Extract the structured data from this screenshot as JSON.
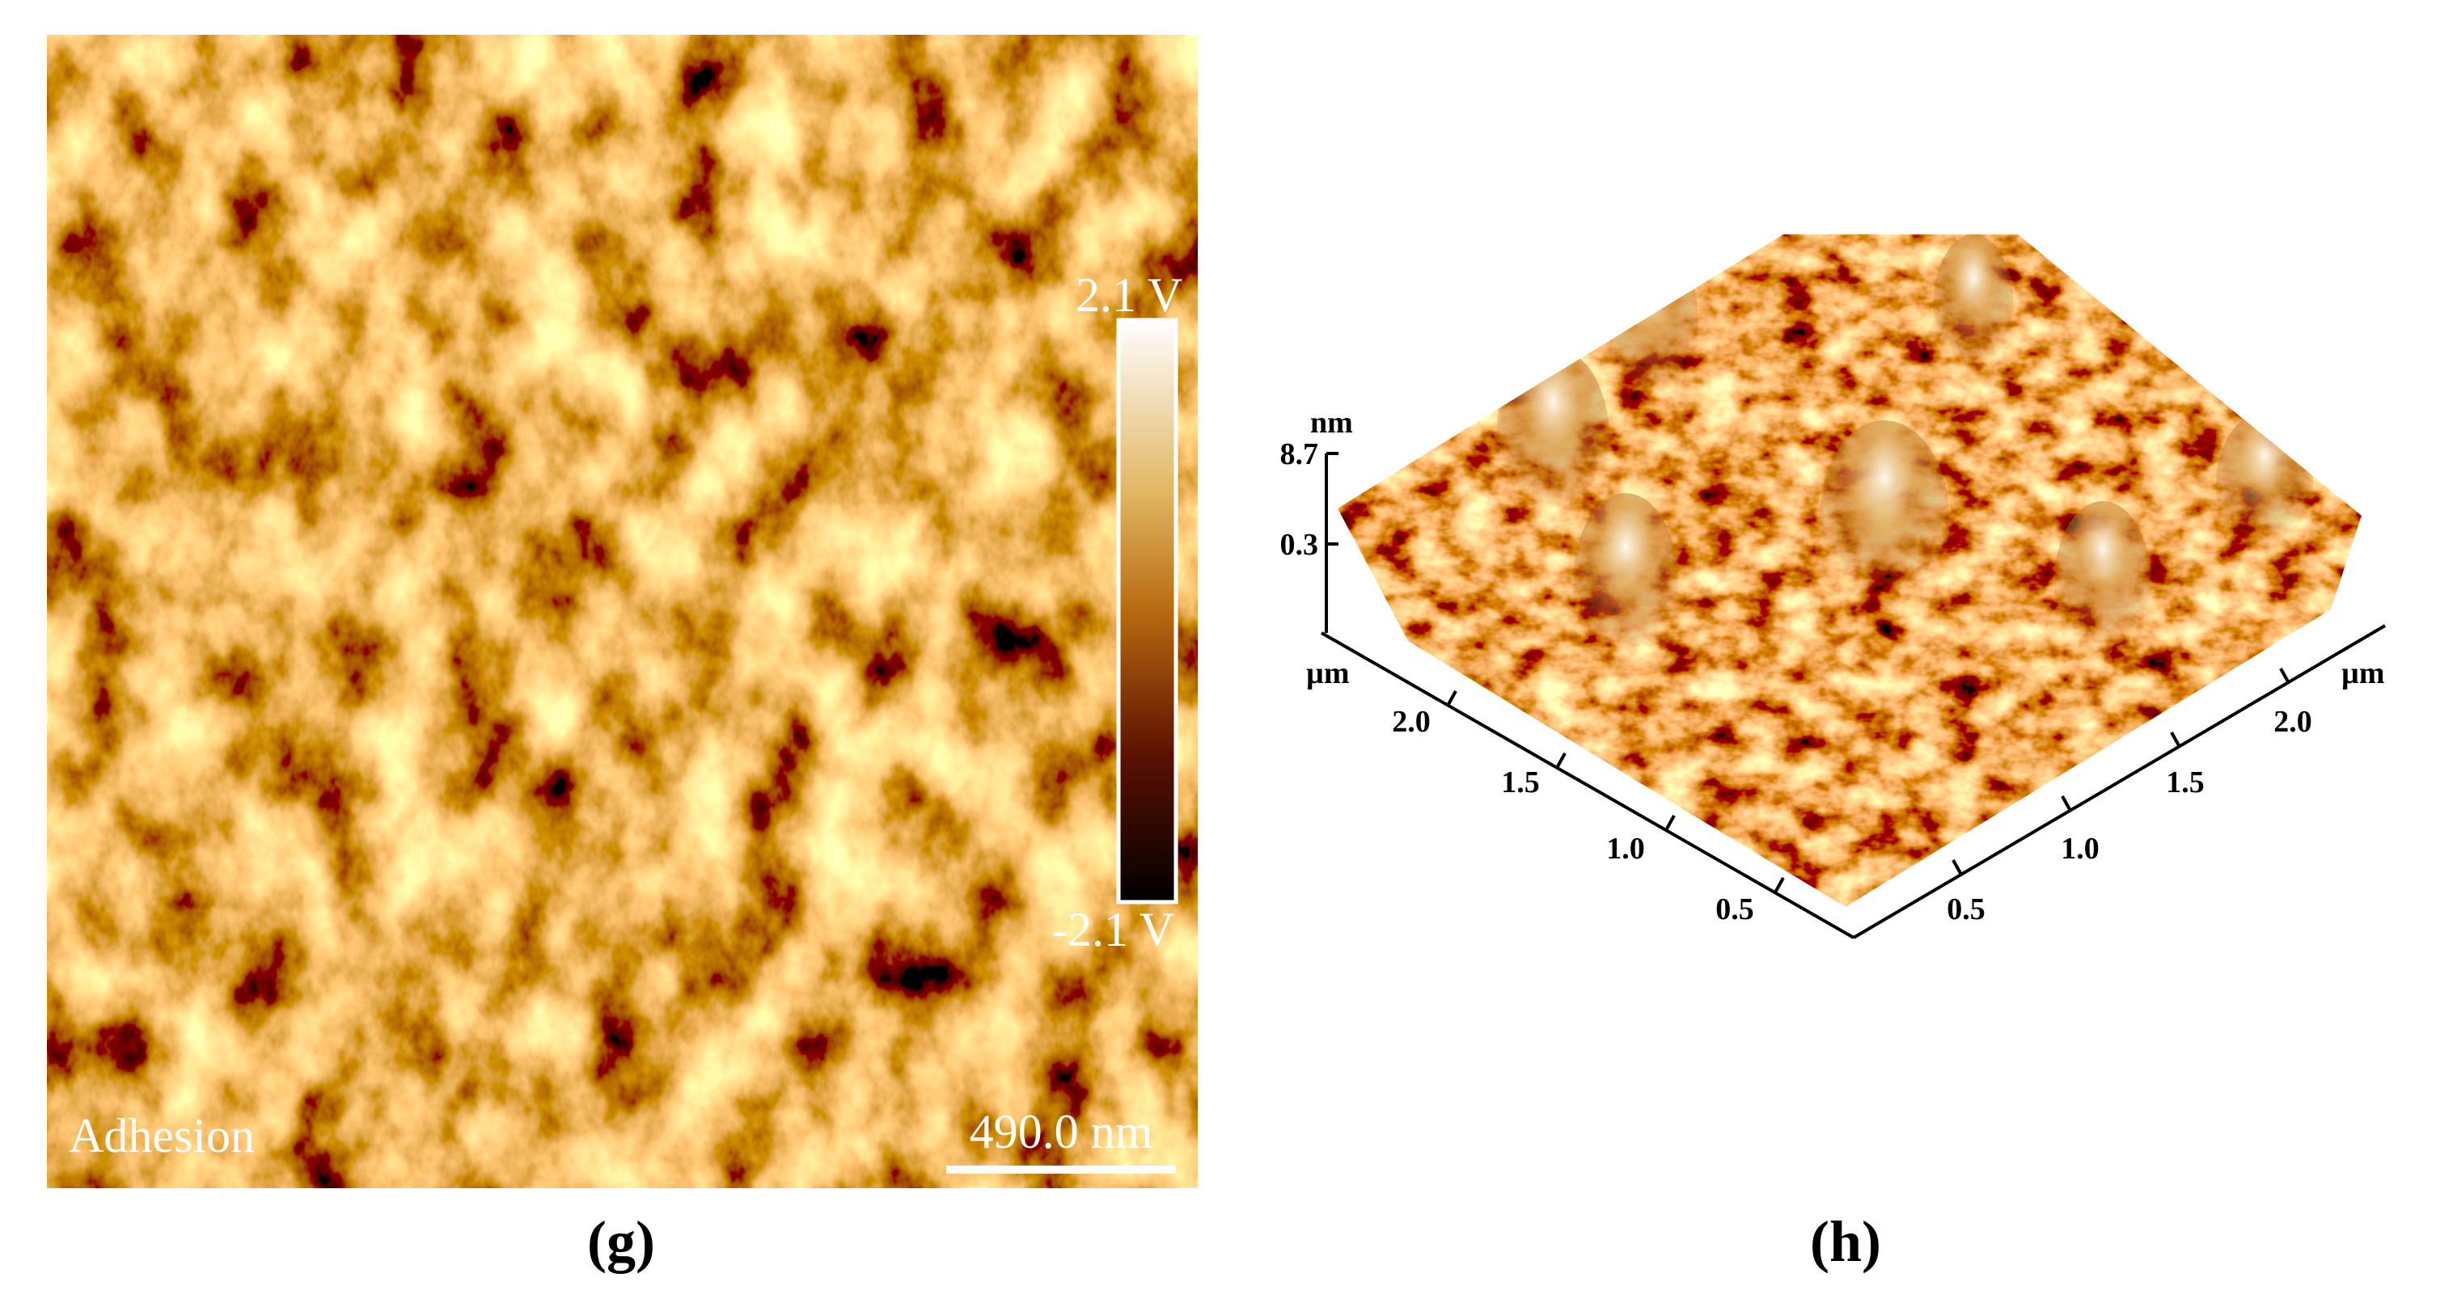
{
  "panel_g": {
    "colorbar_max": "2.1 V",
    "colorbar_min": "-2.1 V",
    "channel": "Adhesion",
    "scale_bar": "490.0 nm",
    "caption": "(g)"
  },
  "panel_h": {
    "z_unit": "nm",
    "z_ticks": [
      "8.7",
      "0.3"
    ],
    "left_axis": {
      "unit": "µm",
      "ticks": [
        "2.0",
        "1.5",
        "1.0",
        "0.5"
      ]
    },
    "right_axis": {
      "unit": "µm",
      "ticks": [
        "2.0",
        "1.5",
        "1.0",
        "0.5"
      ]
    },
    "caption": "(h)"
  }
}
